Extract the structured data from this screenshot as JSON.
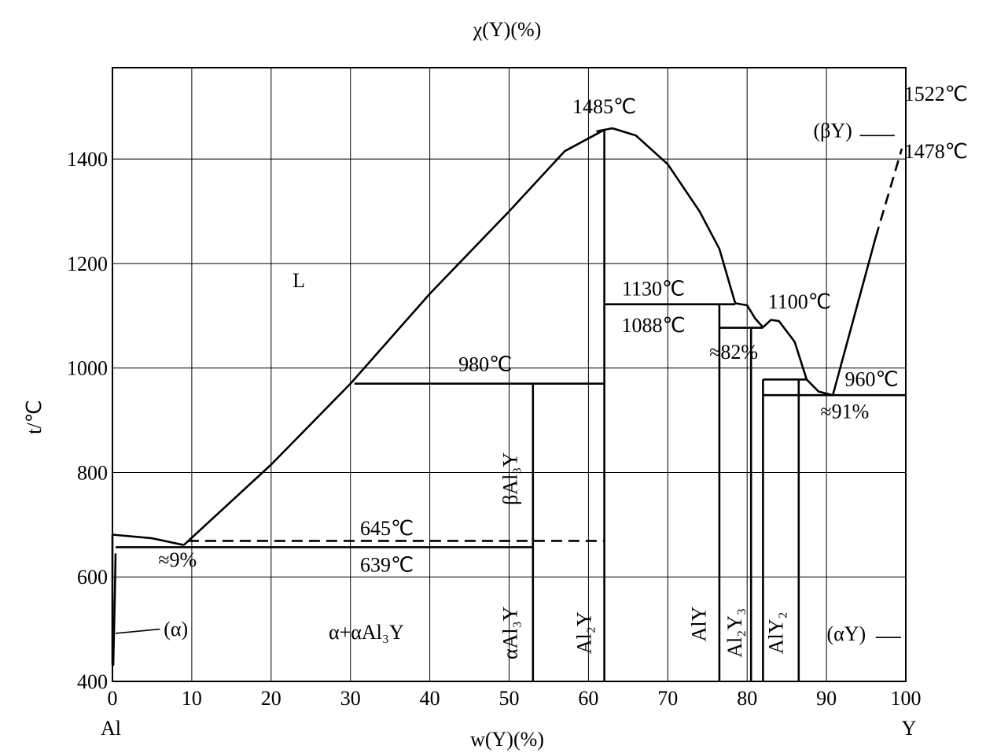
{
  "chart_data": {
    "type": "phase-diagram",
    "top_label": "χ(Y)(%)",
    "xlabel": "w(Y)(%)",
    "ylabel": "t/℃",
    "xlim": [
      0,
      100
    ],
    "ylim": [
      400,
      1400
    ],
    "x_ticks": [
      "0",
      "10",
      "20",
      "30",
      "40",
      "50",
      "60",
      "70",
      "80",
      "90",
      "100"
    ],
    "y_ticks": [
      "400",
      "600",
      "800",
      "1000",
      "1200",
      "1400"
    ],
    "x_start_label": "Al",
    "x_end_label": "Y",
    "grid": true,
    "boundaries": [
      {
        "name": "liquidus-al-side",
        "style": "solid",
        "points": [
          [
            0,
            681
          ],
          [
            5,
            674
          ],
          [
            9,
            661
          ]
        ]
      },
      {
        "name": "liquidus-al3y",
        "style": "solid",
        "points": [
          [
            9,
            661
          ],
          [
            20,
            815
          ],
          [
            30,
            970
          ],
          [
            40,
            1142
          ],
          [
            50,
            1300
          ],
          [
            57,
            1415
          ],
          [
            62,
            1456
          ]
        ]
      },
      {
        "name": "liquidus-al2y-top",
        "style": "solid",
        "points": [
          [
            61,
            1453
          ],
          [
            63,
            1459
          ],
          [
            66,
            1445
          ],
          [
            70,
            1390
          ],
          [
            74,
            1300
          ],
          [
            76.5,
            1228
          ],
          [
            78,
            1150
          ],
          [
            78.5,
            1124
          ]
        ]
      },
      {
        "name": "peritectic-1130-corner",
        "style": "solid",
        "points": [
          [
            78.5,
            1124
          ],
          [
            80,
            1120
          ],
          [
            81,
            1095
          ],
          [
            82,
            1078
          ]
        ]
      },
      {
        "name": "liquidus-alY2",
        "style": "solid",
        "points": [
          [
            82,
            1078
          ],
          [
            83,
            1092
          ],
          [
            84,
            1090
          ],
          [
            86,
            1050
          ],
          [
            87.5,
            978
          ]
        ]
      },
      {
        "name": "liquidus-to-eutectic",
        "style": "solid",
        "points": [
          [
            87.5,
            978
          ],
          [
            89,
            955
          ],
          [
            90.8,
            948
          ]
        ]
      },
      {
        "name": "liquidus-betaY",
        "style": "solid",
        "points": [
          [
            90.8,
            948
          ],
          [
            96.2,
            1250
          ]
        ]
      },
      {
        "name": "liquidus-betaY-dashed",
        "style": "dashed",
        "points": [
          [
            96.2,
            1250
          ],
          [
            99.5,
            1420
          ]
        ]
      },
      {
        "name": "alpha-solvus",
        "style": "solid",
        "points": [
          [
            0.4,
            645
          ],
          [
            0.3,
            560
          ],
          [
            0.2,
            495
          ],
          [
            0.1,
            430
          ]
        ]
      },
      {
        "name": "al-left-edge",
        "style": "solid",
        "points": [
          [
            0,
            681
          ],
          [
            0,
            432
          ]
        ]
      },
      {
        "name": "eutectic-639",
        "style": "solid",
        "points": [
          [
            0.4,
            657
          ],
          [
            53,
            657
          ]
        ]
      },
      {
        "name": "dashed-645",
        "style": "dashed",
        "points": [
          [
            9.5,
            669
          ],
          [
            62,
            669
          ]
        ]
      },
      {
        "name": "peritectic-980",
        "style": "solid",
        "points": [
          [
            30.5,
            970
          ],
          [
            62,
            970
          ]
        ]
      },
      {
        "name": "peritectic-1130",
        "style": "solid",
        "points": [
          [
            62,
            1122
          ],
          [
            78.5,
            1122
          ]
        ]
      },
      {
        "name": "peritectic-1088",
        "style": "solid",
        "points": [
          [
            76.5,
            1077
          ],
          [
            82,
            1077
          ]
        ]
      },
      {
        "name": "peritectic-980-right",
        "style": "solid",
        "points": [
          [
            82,
            978
          ],
          [
            87.5,
            978
          ]
        ]
      },
      {
        "name": "eutectic-960",
        "style": "solid",
        "points": [
          [
            82,
            948
          ],
          [
            100,
            948
          ]
        ]
      },
      {
        "name": "line-alpha-Al3Y",
        "style": "solid",
        "points": [
          [
            53,
            400
          ],
          [
            53,
            970
          ]
        ]
      },
      {
        "name": "line-Al2Y",
        "style": "solid",
        "points": [
          [
            62,
            400
          ],
          [
            62,
            1456
          ]
        ]
      },
      {
        "name": "line-AlY",
        "style": "solid",
        "points": [
          [
            76.5,
            400
          ],
          [
            76.5,
            1122
          ]
        ]
      },
      {
        "name": "line-Al2Y3",
        "style": "solid",
        "points": [
          [
            80.5,
            400
          ],
          [
            80.5,
            1077
          ]
        ]
      },
      {
        "name": "line-AlY2",
        "style": "solid",
        "points": [
          [
            82,
            400
          ],
          [
            82,
            978
          ]
        ]
      },
      {
        "name": "line-alphaY-boundary",
        "style": "solid",
        "points": [
          [
            86.5,
            400
          ],
          [
            86.5,
            978
          ]
        ]
      }
    ],
    "annotations": [
      {
        "text": "L",
        "x": 23.5,
        "y": 1155
      },
      {
        "text": "1485℃",
        "x": 62.0,
        "y": 1488
      },
      {
        "text": "1522℃",
        "x": 103.8,
        "y": 1512
      },
      {
        "text": "(βY)",
        "x": 90.8,
        "y": 1442
      },
      {
        "text": "1478℃",
        "x": 103.8,
        "y": 1402
      },
      {
        "text": "1130℃",
        "x": 68.2,
        "y": 1139
      },
      {
        "text": "1100℃",
        "x": 86.6,
        "y": 1114
      },
      {
        "text": "1088℃",
        "x": 68.2,
        "y": 1069
      },
      {
        "text": "980℃",
        "x": 47.0,
        "y": 994
      },
      {
        "text": "≈82%",
        "x": 78.3,
        "y": 1018
      },
      {
        "text": "960℃",
        "x": 95.7,
        "y": 966
      },
      {
        "text": "≈91%",
        "x": 92.3,
        "y": 904
      },
      {
        "text": "645℃",
        "x": 34.6,
        "y": 680
      },
      {
        "text": "639℃",
        "x": 34.6,
        "y": 610
      },
      {
        "text": "≈9%",
        "x": 8.2,
        "y": 620
      },
      {
        "text": "(α)",
        "x": 8.0,
        "y": 487
      },
      {
        "text": "α+αAl₃Y",
        "x": 32.0,
        "y": 481
      },
      {
        "text": "(αY)",
        "x": 92.5,
        "y": 478
      }
    ],
    "phase_labels_vertical": [
      {
        "text": "βAl₃Y",
        "x": 51.0,
        "y": 788
      },
      {
        "text": "αAl₃Y",
        "x": 51.0,
        "y": 493
      },
      {
        "text": "Al₂Y",
        "x": 60.3,
        "y": 493
      },
      {
        "text": "AlY",
        "x": 74.8,
        "y": 510
      },
      {
        "text": "Al₂Y₃",
        "x": 79.3,
        "y": 493
      },
      {
        "text": "AlY₂",
        "x": 84.5,
        "y": 493
      }
    ],
    "leader_lines": [
      {
        "name": "alpha-leader",
        "points": [
          [
            0.4,
            492
          ],
          [
            6.0,
            500
          ]
        ]
      },
      {
        "name": "betaY-leader",
        "points": [
          [
            94.2,
            1445
          ],
          [
            98.6,
            1445
          ]
        ]
      },
      {
        "name": "alphaY-leader",
        "points": [
          [
            96.2,
            484
          ],
          [
            99.4,
            484
          ]
        ]
      }
    ]
  }
}
